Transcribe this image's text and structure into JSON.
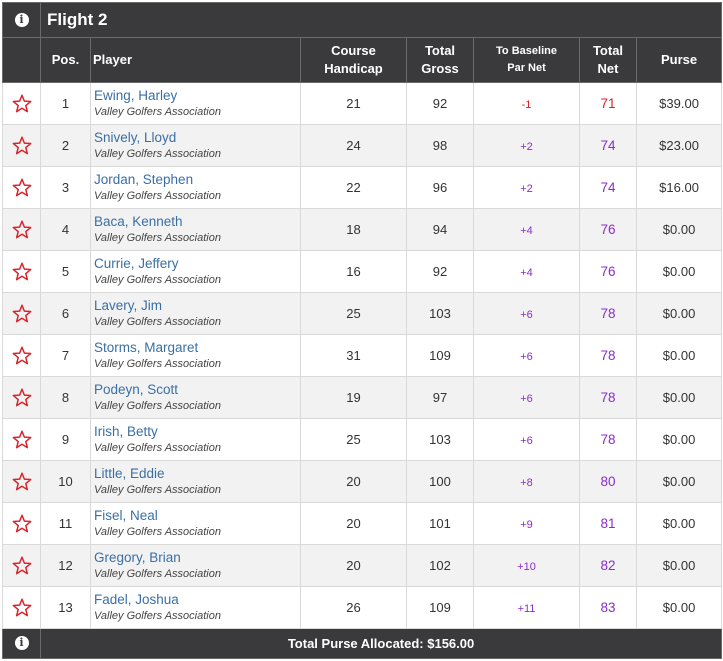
{
  "flight": {
    "title": "Flight 2"
  },
  "header": {
    "pos": "Pos.",
    "player": "Player",
    "course_handicap_1": "Course",
    "course_handicap_2": "Handicap",
    "total_gross_1": "Total",
    "total_gross_2": "Gross",
    "to_baseline_1": "To Baseline",
    "to_baseline_2": "Par Net",
    "total_net_1": "Total",
    "total_net_2": "Net",
    "purse": "Purse"
  },
  "rows": [
    {
      "pos": "1",
      "name": "Ewing, Harley",
      "assoc": "Valley Golfers Association",
      "handicap": "21",
      "gross": "92",
      "to_par": "-1",
      "net": "71",
      "purse": "$39.00"
    },
    {
      "pos": "2",
      "name": "Snively, Lloyd",
      "assoc": "Valley Golfers Association",
      "handicap": "24",
      "gross": "98",
      "to_par": "+2",
      "net": "74",
      "purse": "$23.00"
    },
    {
      "pos": "3",
      "name": "Jordan, Stephen",
      "assoc": "Valley Golfers Association",
      "handicap": "22",
      "gross": "96",
      "to_par": "+2",
      "net": "74",
      "purse": "$16.00"
    },
    {
      "pos": "4",
      "name": "Baca, Kenneth",
      "assoc": "Valley Golfers Association",
      "handicap": "18",
      "gross": "94",
      "to_par": "+4",
      "net": "76",
      "purse": "$0.00"
    },
    {
      "pos": "5",
      "name": "Currie, Jeffery",
      "assoc": "Valley Golfers Association",
      "handicap": "16",
      "gross": "92",
      "to_par": "+4",
      "net": "76",
      "purse": "$0.00"
    },
    {
      "pos": "6",
      "name": "Lavery, Jim",
      "assoc": "Valley Golfers Association",
      "handicap": "25",
      "gross": "103",
      "to_par": "+6",
      "net": "78",
      "purse": "$0.00"
    },
    {
      "pos": "7",
      "name": "Storms, Margaret",
      "assoc": "Valley Golfers Association",
      "handicap": "31",
      "gross": "109",
      "to_par": "+6",
      "net": "78",
      "purse": "$0.00"
    },
    {
      "pos": "8",
      "name": "Podeyn, Scott",
      "assoc": "Valley Golfers Association",
      "handicap": "19",
      "gross": "97",
      "to_par": "+6",
      "net": "78",
      "purse": "$0.00"
    },
    {
      "pos": "9",
      "name": "Irish, Betty",
      "assoc": "Valley Golfers Association",
      "handicap": "25",
      "gross": "103",
      "to_par": "+6",
      "net": "78",
      "purse": "$0.00"
    },
    {
      "pos": "10",
      "name": "Little, Eddie",
      "assoc": "Valley Golfers Association",
      "handicap": "20",
      "gross": "100",
      "to_par": "+8",
      "net": "80",
      "purse": "$0.00"
    },
    {
      "pos": "11",
      "name": "Fisel, Neal",
      "assoc": "Valley Golfers Association",
      "handicap": "20",
      "gross": "101",
      "to_par": "+9",
      "net": "81",
      "purse": "$0.00"
    },
    {
      "pos": "12",
      "name": "Gregory, Brian",
      "assoc": "Valley Golfers Association",
      "handicap": "20",
      "gross": "102",
      "to_par": "+10",
      "net": "82",
      "purse": "$0.00"
    },
    {
      "pos": "13",
      "name": "Fadel, Joshua",
      "assoc": "Valley Golfers Association",
      "handicap": "26",
      "gross": "109",
      "to_par": "+11",
      "net": "83",
      "purse": "$0.00"
    }
  ],
  "footer": {
    "total_purse": "Total Purse Allocated: $156.00"
  },
  "icons": {
    "info": "info-icon",
    "favorite": "star-outline-icon"
  },
  "colors": {
    "header_bg": "#3a3a3d",
    "link": "#3a6fa5",
    "star": "#d9222a",
    "under_par": "#d9222a",
    "over_par": "#8b2cc9",
    "alt_row": "#f2f2f2"
  }
}
